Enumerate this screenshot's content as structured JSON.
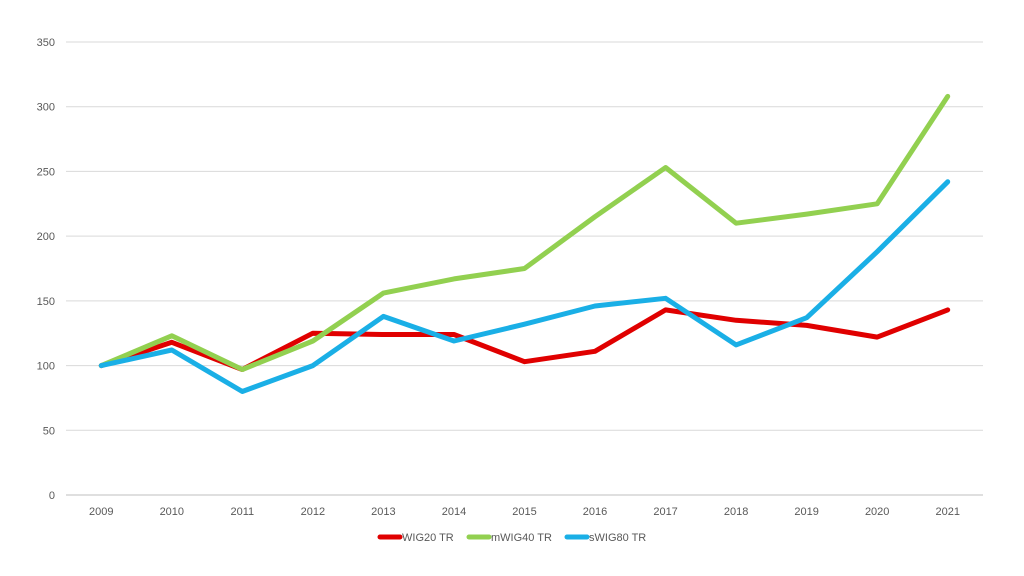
{
  "chart_data": {
    "type": "line",
    "title": "",
    "xlabel": "",
    "ylabel": "",
    "categories": [
      "2009",
      "2010",
      "2011",
      "2012",
      "2013",
      "2014",
      "2015",
      "2016",
      "2017",
      "2018",
      "2019",
      "2020",
      "2021"
    ],
    "yticks": [
      "0",
      "50",
      "100",
      "150",
      "200",
      "250",
      "300",
      "350"
    ],
    "ylim": [
      0,
      350
    ],
    "grid": true,
    "legend_position": "bottom",
    "series": [
      {
        "name": "WIG20 TR",
        "color": "#e00000",
        "values": [
          100,
          118,
          97,
          125,
          124,
          124,
          103,
          111,
          143,
          135,
          131,
          122,
          143
        ]
      },
      {
        "name": "mWIG40 TR",
        "color": "#92d050",
        "values": [
          100,
          123,
          97,
          119,
          156,
          167,
          175,
          215,
          253,
          210,
          217,
          225,
          308
        ]
      },
      {
        "name": "sWIG80 TR",
        "color": "#1aafe6",
        "values": [
          100,
          112,
          80,
          100,
          138,
          119,
          132,
          146,
          152,
          116,
          137,
          188,
          242
        ]
      }
    ]
  }
}
